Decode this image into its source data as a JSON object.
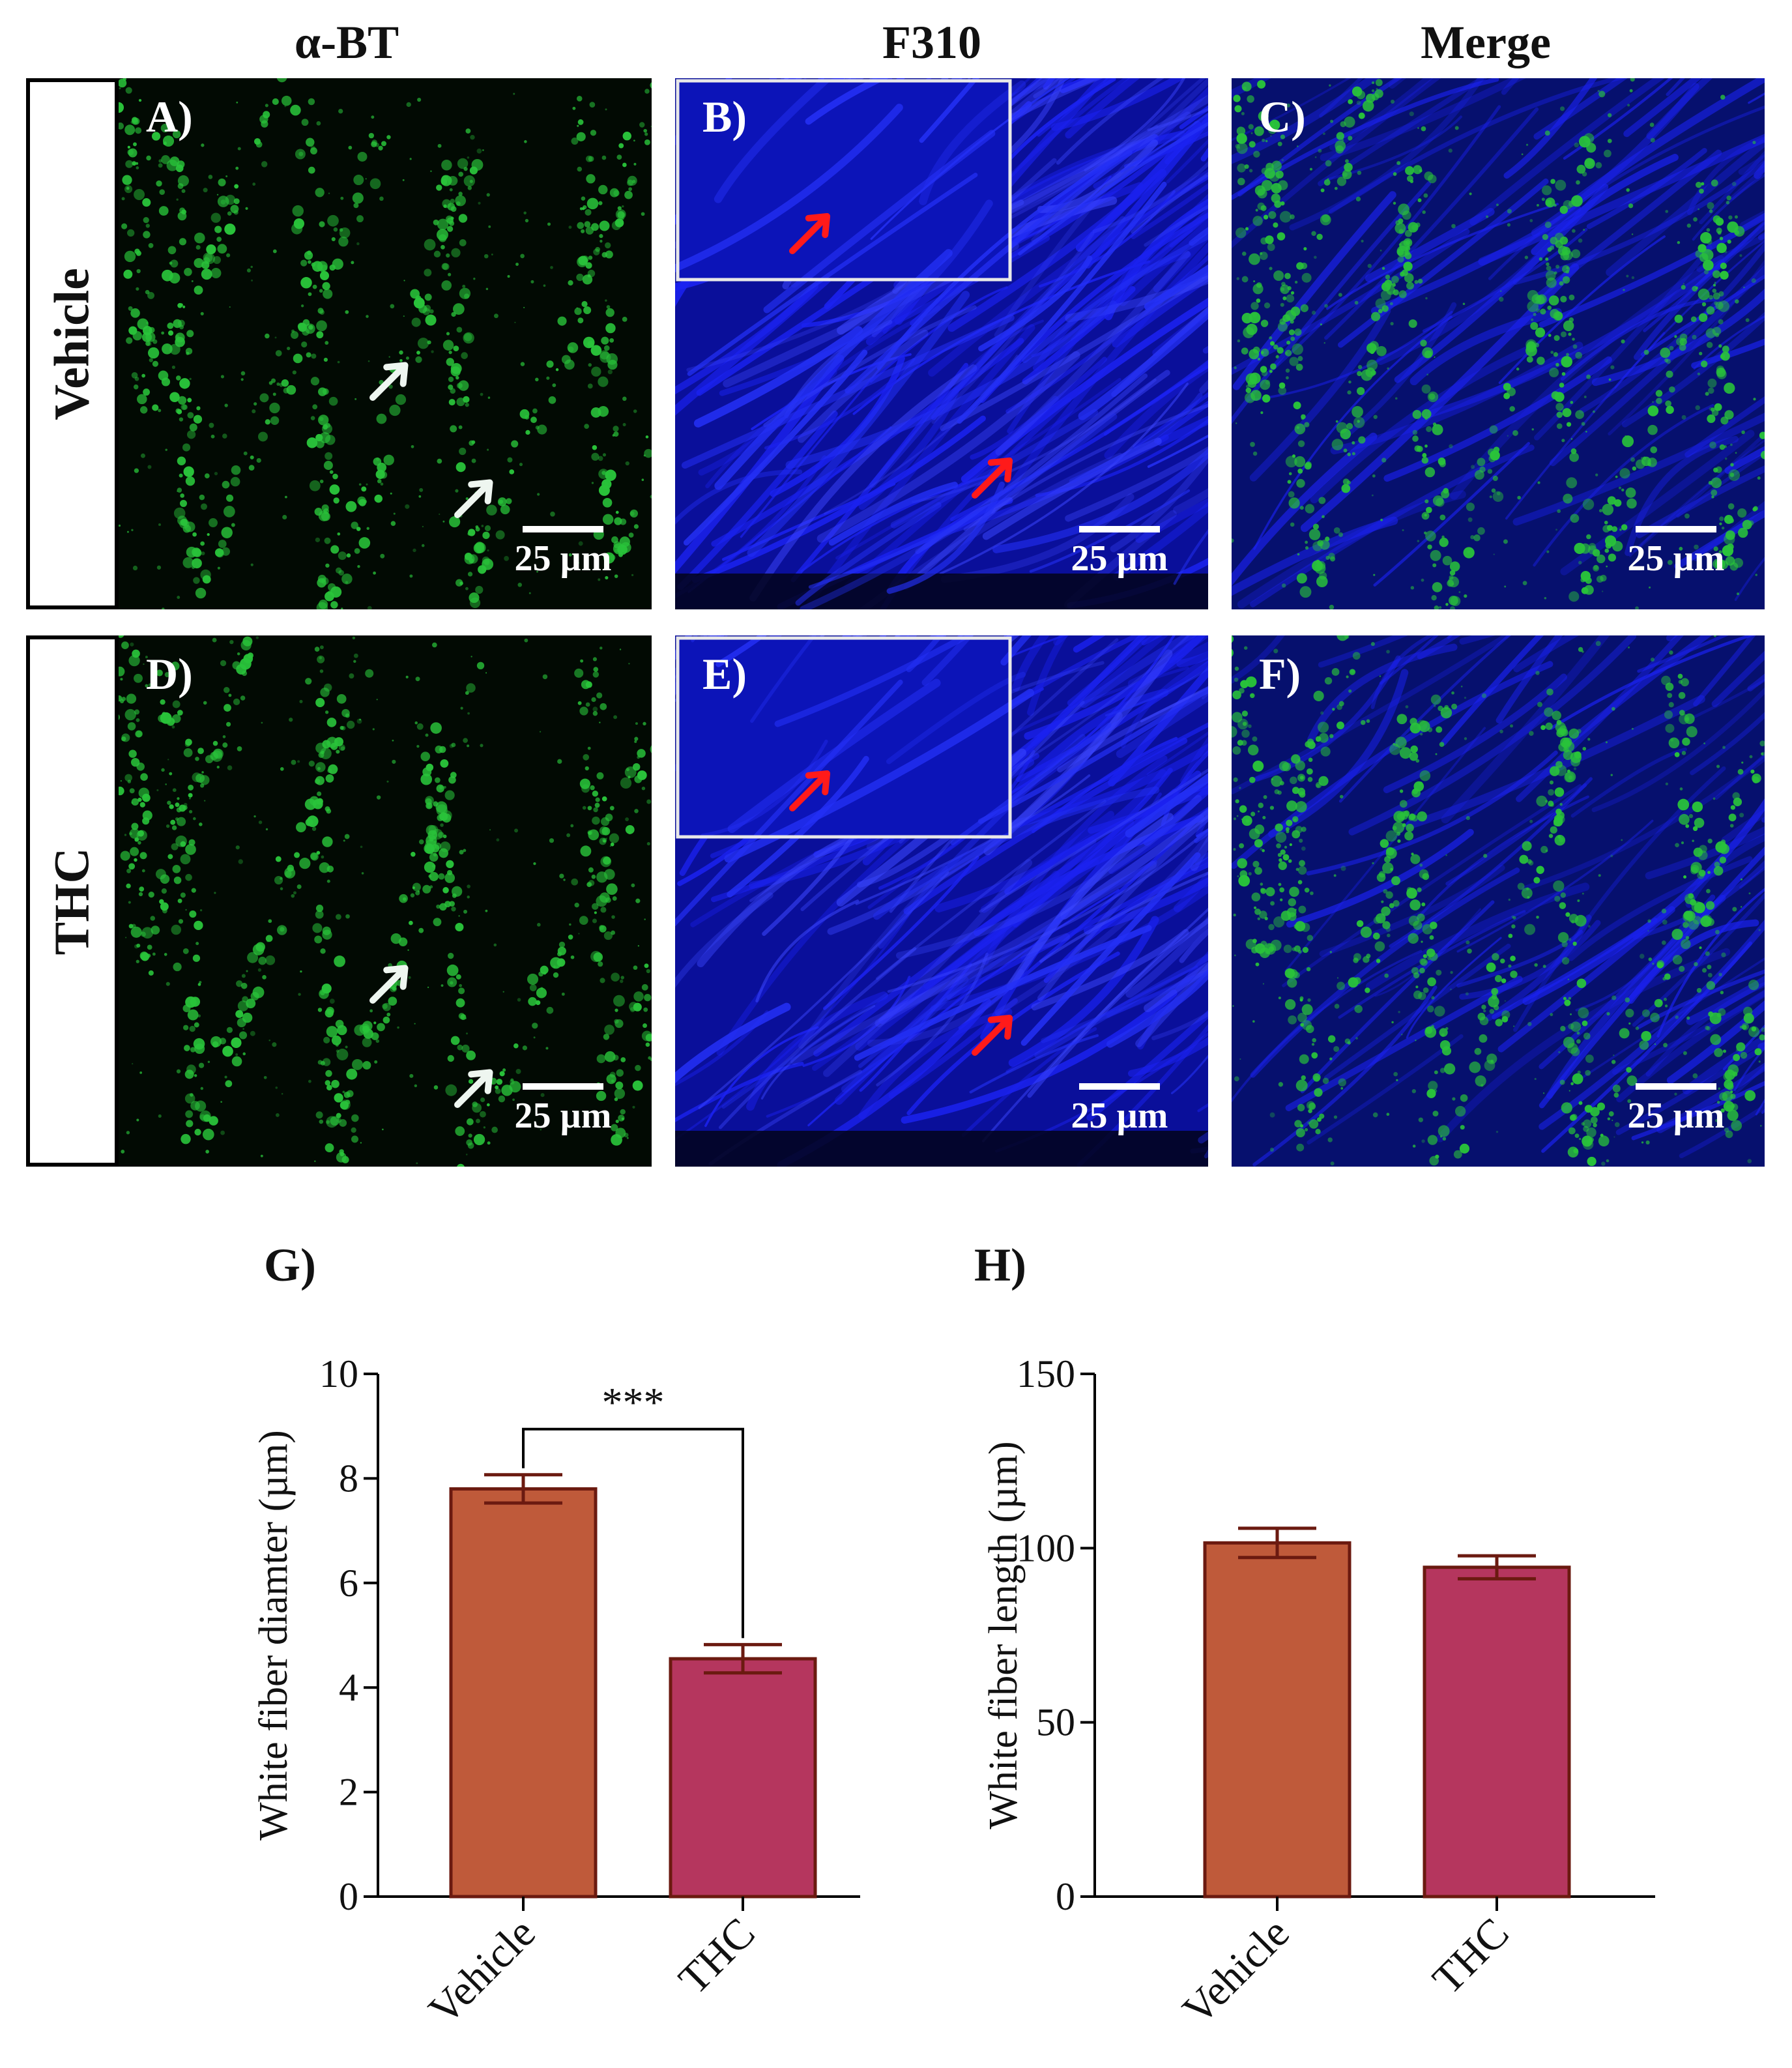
{
  "columns": [
    "α-BT",
    "F310",
    "Merge"
  ],
  "rows": [
    "Vehicle",
    "THC"
  ],
  "panels": [
    {
      "letter": "A)",
      "scale": "25 µm",
      "channel": "green"
    },
    {
      "letter": "B)",
      "scale": "25 µm",
      "channel": "blue"
    },
    {
      "letter": "C)",
      "scale": "25 µm",
      "channel": "merge"
    },
    {
      "letter": "D)",
      "scale": "25 µm",
      "channel": "green"
    },
    {
      "letter": "E)",
      "scale": "25 µm",
      "channel": "blue"
    },
    {
      "letter": "F)",
      "scale": "25 µm",
      "channel": "merge"
    }
  ],
  "colors": {
    "green": "#29c33a",
    "blue": "#1b22f0",
    "vehicle_bar": "#bf5a3a",
    "thc_bar": "#b5365e",
    "bar_edge": "#6b1a10",
    "white_arrow": "#eef6f0",
    "red_arrow": "#ff1a1a"
  },
  "chart_data": [
    {
      "panel_label": "G)",
      "type": "bar",
      "categories": [
        "Vehicle",
        "THC"
      ],
      "values": [
        7.8,
        4.55
      ],
      "errors": [
        0.27,
        0.27
      ],
      "ylabel": "White fiber diamter (µm)",
      "ylim": [
        0,
        10
      ],
      "yticks": [
        "0",
        "2",
        "4",
        "6",
        "8",
        "10"
      ],
      "significance": "***"
    },
    {
      "panel_label": "H)",
      "type": "bar",
      "categories": [
        "Vehicle",
        "THC"
      ],
      "values": [
        101.5,
        94.5
      ],
      "errors": [
        4.2,
        3.3
      ],
      "ylabel": "White fiber length (µm)",
      "ylim": [
        0,
        150
      ],
      "yticks": [
        "0",
        "50",
        "100",
        "150"
      ]
    }
  ]
}
